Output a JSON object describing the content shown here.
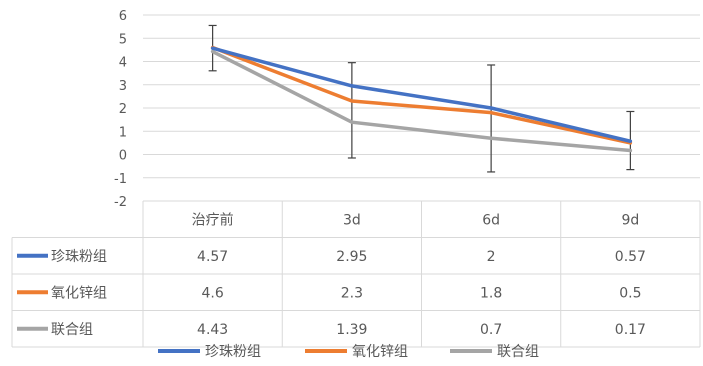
{
  "chart_data": {
    "type": "line",
    "categories": [
      "治疗前",
      "3d",
      "6d",
      "9d"
    ],
    "y_ticks": [
      "6",
      "5",
      "4",
      "3",
      "2",
      "1",
      "0",
      "-1",
      "-2"
    ],
    "ylim": [
      -2,
      6
    ],
    "grid": true,
    "legend_position": "bottom",
    "error_bars": true,
    "series": [
      {
        "name": "珍珠粉组",
        "color": "#4472C4",
        "values": [
          4.57,
          2.95,
          2,
          0.57
        ],
        "value_labels": [
          "4.57",
          "2.95",
          "2",
          "0.57"
        ]
      },
      {
        "name": "氧化锌组",
        "color": "#ED7D31",
        "values": [
          4.6,
          2.3,
          1.8,
          0.5
        ],
        "value_labels": [
          "4.6",
          "2.3",
          "1.8",
          "0.5"
        ]
      },
      {
        "name": "联合组",
        "color": "#A5A5A5",
        "values": [
          4.43,
          1.39,
          0.7,
          0.17
        ],
        "value_labels": [
          "4.43",
          "1.39",
          "0.7",
          "0.17"
        ]
      }
    ],
    "error_bar_ranges": [
      [
        3.6,
        5.55
      ],
      [
        -0.15,
        3.95
      ],
      [
        -0.75,
        3.85
      ],
      [
        -0.65,
        1.85
      ]
    ]
  }
}
